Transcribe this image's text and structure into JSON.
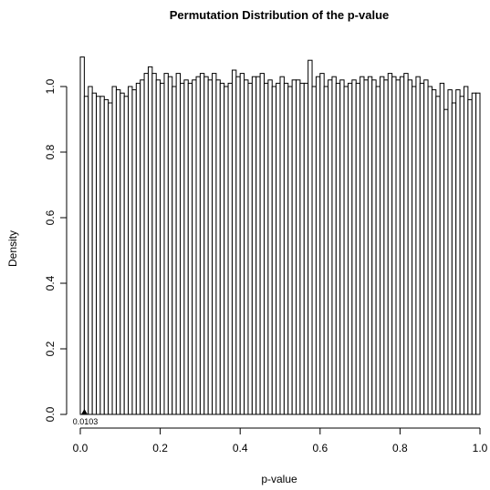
{
  "chart_data": {
    "type": "bar",
    "title": "Permutation Distribution of the p-value",
    "xlabel": "p-value",
    "ylabel": "Density",
    "xlim": [
      0,
      1
    ],
    "ylim": [
      0,
      1.1
    ],
    "x_ticks": [
      0.0,
      0.2,
      0.4,
      0.6,
      0.8,
      1.0
    ],
    "x_tick_labels": [
      "0.0",
      "0.2",
      "0.4",
      "0.6",
      "0.8",
      "1.0"
    ],
    "y_ticks": [
      0.0,
      0.2,
      0.4,
      0.6,
      0.8,
      1.0
    ],
    "y_tick_labels": [
      "0.0",
      "0.2",
      "0.4",
      "0.6",
      "0.8",
      "1.0"
    ],
    "bin_width": 0.01,
    "bin_edges_start": 0.0,
    "values": [
      1.09,
      0.97,
      1.0,
      0.98,
      0.97,
      0.97,
      0.96,
      0.95,
      1.0,
      0.99,
      0.98,
      0.97,
      1.0,
      0.99,
      1.01,
      1.02,
      1.04,
      1.06,
      1.04,
      1.02,
      1.01,
      1.04,
      1.03,
      1.0,
      1.04,
      1.01,
      1.02,
      1.01,
      1.02,
      1.03,
      1.04,
      1.03,
      1.02,
      1.04,
      1.02,
      1.01,
      1.0,
      1.01,
      1.05,
      1.03,
      1.04,
      1.02,
      1.01,
      1.03,
      1.03,
      1.04,
      1.01,
      1.02,
      1.0,
      1.01,
      1.03,
      1.01,
      1.0,
      1.02,
      1.02,
      1.01,
      1.01,
      1.08,
      1.0,
      1.03,
      1.04,
      1.0,
      1.02,
      1.03,
      1.01,
      1.02,
      1.0,
      1.01,
      1.02,
      1.01,
      1.03,
      1.02,
      1.03,
      1.02,
      1.0,
      1.03,
      1.02,
      1.04,
      1.03,
      1.02,
      1.03,
      1.04,
      1.02,
      1.0,
      1.03,
      1.01,
      1.02,
      1.0,
      0.99,
      0.97,
      1.01,
      0.93,
      0.99,
      0.95,
      0.99,
      0.97,
      1.0,
      0.96,
      0.98,
      0.98
    ],
    "observed_marker": {
      "value": 0.0103,
      "label": "0.0103"
    },
    "grid": false,
    "legend": "none"
  }
}
